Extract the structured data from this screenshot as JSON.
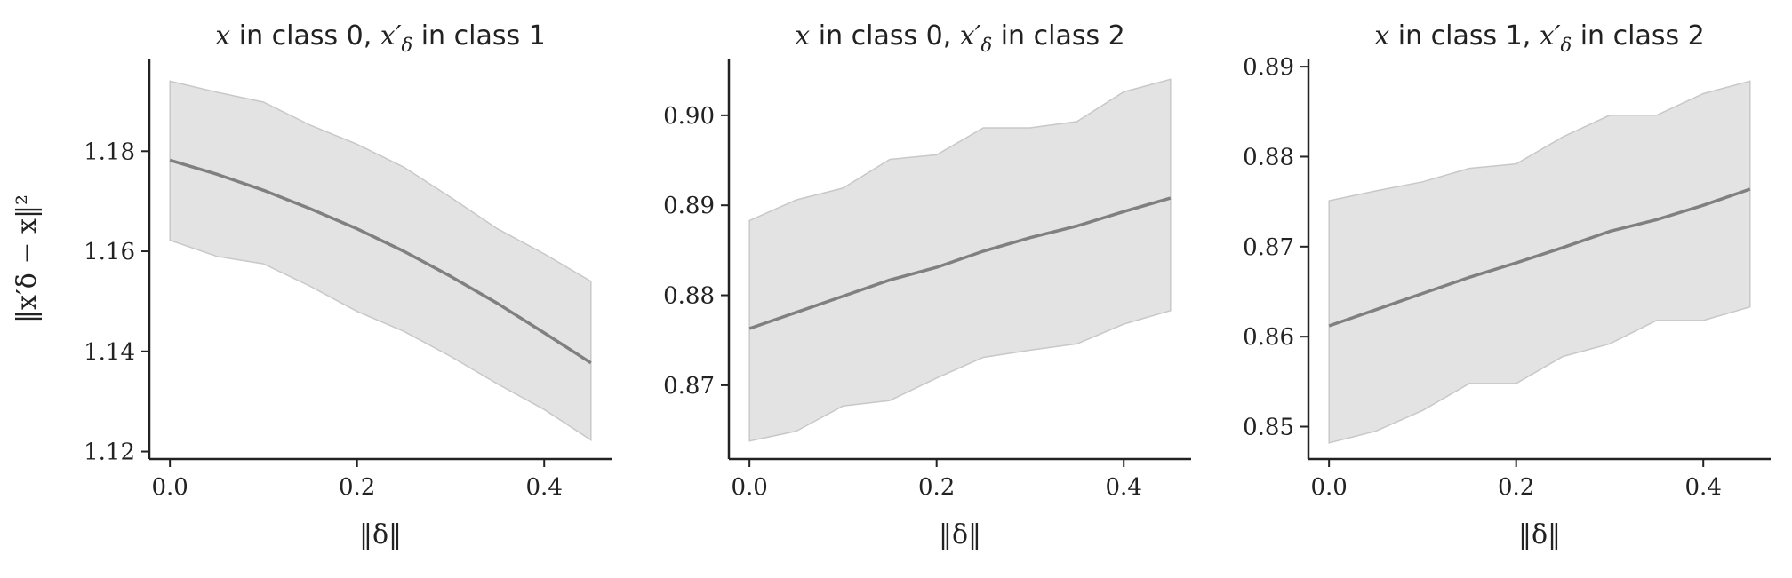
{
  "chart_data": [
    {
      "type": "line",
      "title_parts": [
        "x",
        " in class 0, ",
        "x′",
        "δ",
        " in class 1"
      ],
      "xlabel": "‖δ‖",
      "ylabel": "‖x′δ − x‖²",
      "xlim": [
        -0.022,
        0.472
      ],
      "ylim": [
        1.1185,
        1.1985
      ],
      "xticks": [
        "0.0",
        "0.2",
        "0.4"
      ],
      "xtick_values": [
        0.0,
        0.2,
        0.4
      ],
      "yticks": [
        "1.12",
        "1.14",
        "1.16",
        "1.18"
      ],
      "ytick_values": [
        1.12,
        1.14,
        1.16,
        1.18
      ],
      "x": [
        0.0,
        0.05,
        0.1,
        0.15,
        0.2,
        0.25,
        0.3,
        0.35,
        0.4,
        0.45
      ],
      "series": [
        {
          "mean": [
            1.1782,
            1.1754,
            1.1722,
            1.1685,
            1.1645,
            1.16,
            1.155,
            1.1496,
            1.1437,
            1.1377
          ],
          "upper": [
            1.194,
            1.1918,
            1.1898,
            1.1852,
            1.1814,
            1.1768,
            1.1708,
            1.1645,
            1.1595,
            1.154
          ],
          "lower": [
            1.1622,
            1.159,
            1.1575,
            1.153,
            1.148,
            1.144,
            1.139,
            1.1335,
            1.1284,
            1.1223
          ]
        }
      ],
      "colors": {
        "line": "#808080",
        "band": "#d9d9d9"
      }
    },
    {
      "type": "line",
      "title_parts": [
        "x",
        " in class 0, ",
        "x′",
        "δ",
        " in class 2"
      ],
      "xlabel": "‖δ‖",
      "ylabel": "",
      "xlim": [
        -0.022,
        0.472
      ],
      "ylim": [
        0.8618,
        0.9063
      ],
      "xticks": [
        "0.0",
        "0.2",
        "0.4"
      ],
      "xtick_values": [
        0.0,
        0.2,
        0.4
      ],
      "yticks": [
        "0.87",
        "0.88",
        "0.89",
        "0.90"
      ],
      "ytick_values": [
        0.87,
        0.88,
        0.89,
        0.9
      ],
      "x": [
        0.0,
        0.05,
        0.1,
        0.15,
        0.2,
        0.25,
        0.3,
        0.35,
        0.4,
        0.45
      ],
      "series": [
        {
          "mean": [
            0.8763,
            0.8781,
            0.8799,
            0.8817,
            0.8831,
            0.8849,
            0.8864,
            0.8877,
            0.8893,
            0.8908
          ],
          "upper": [
            0.8883,
            0.8906,
            0.8919,
            0.8951,
            0.8956,
            0.8986,
            0.8986,
            0.8993,
            0.9026,
            0.904
          ],
          "lower": [
            0.8638,
            0.8649,
            0.8677,
            0.8683,
            0.8708,
            0.8731,
            0.8739,
            0.8746,
            0.8768,
            0.8783
          ]
        }
      ],
      "colors": {
        "line": "#808080",
        "band": "#d9d9d9"
      }
    },
    {
      "type": "line",
      "title_parts": [
        "x",
        " in class 1, ",
        "x′",
        "δ",
        " in class 2"
      ],
      "xlabel": "‖δ‖",
      "ylabel": "",
      "xlim": [
        -0.022,
        0.472
      ],
      "ylim": [
        0.8464,
        0.8909
      ],
      "xticks": [
        "0.0",
        "0.2",
        "0.4"
      ],
      "xtick_values": [
        0.0,
        0.2,
        0.4
      ],
      "yticks": [
        "0.85",
        "0.86",
        "0.87",
        "0.88",
        "0.89"
      ],
      "ytick_values": [
        0.85,
        0.86,
        0.87,
        0.88,
        0.89
      ],
      "x": [
        0.0,
        0.05,
        0.1,
        0.15,
        0.2,
        0.25,
        0.3,
        0.35,
        0.4,
        0.45
      ],
      "series": [
        {
          "mean": [
            0.8612,
            0.863,
            0.8648,
            0.8666,
            0.8682,
            0.8699,
            0.8717,
            0.873,
            0.8746,
            0.8764
          ],
          "upper": [
            0.8751,
            0.8762,
            0.8772,
            0.8787,
            0.8792,
            0.8822,
            0.8846,
            0.8846,
            0.887,
            0.8884
          ],
          "lower": [
            0.8482,
            0.8495,
            0.8518,
            0.8548,
            0.8548,
            0.8578,
            0.8592,
            0.8618,
            0.8618,
            0.8633
          ]
        }
      ],
      "colors": {
        "line": "#808080",
        "band": "#d9d9d9"
      }
    }
  ]
}
